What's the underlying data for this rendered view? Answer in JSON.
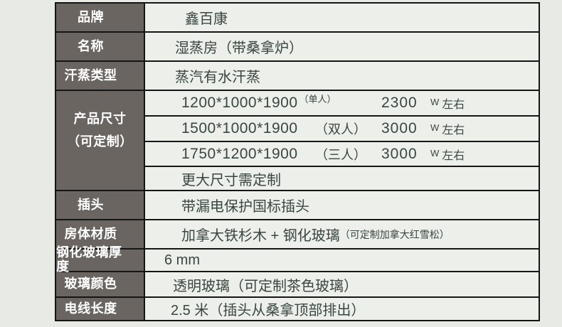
{
  "colors": {
    "page_bg": "#e8eae6",
    "cell_bg": "#edefeb",
    "label_bg": "#6b6561",
    "border_color": "#151515",
    "value_text": "#3a4641",
    "label_text": "#ffffff"
  },
  "table": {
    "rows": {
      "brand": {
        "label": "品牌",
        "value": "鑫百康"
      },
      "name": {
        "label": "名称",
        "value": "湿蒸房（带桑拿炉）"
      },
      "sweat": {
        "label": "汗蒸类型",
        "value": "蒸汽有水汗蒸"
      },
      "size": {
        "label_line1": "产品尺寸",
        "label_line2": "（可定制）",
        "options": [
          {
            "dim": "1200*1000*1900",
            "person": "（单人）",
            "power": "2300",
            "watt_unit": "W",
            "watt_suffix": "左右"
          },
          {
            "dim": "1500*1000*1900",
            "person": "（双人）",
            "power": "3000",
            "watt_unit": "W",
            "watt_suffix": "左右"
          },
          {
            "dim": "1750*1200*1900",
            "person": "（三人）",
            "power": "3000",
            "watt_unit": "W",
            "watt_suffix": "左右"
          }
        ],
        "note": "更大尺寸需定制"
      },
      "plug": {
        "label": "插头",
        "value": "带漏电保护国标插头"
      },
      "material": {
        "label": "房体材质",
        "value_main": "加拿大铁杉木 + 钢化玻璃",
        "value_small": "（可定制加拿大红雪松）"
      },
      "thickness": {
        "label": "钢化玻璃厚度",
        "value": "6 mm"
      },
      "glass": {
        "label": "玻璃颜色",
        "value": "透明玻璃（可定制茶色玻璃）"
      },
      "wire": {
        "label": "电线长度",
        "value": "2.5 米（插头从桑拿顶部排出）"
      }
    }
  }
}
